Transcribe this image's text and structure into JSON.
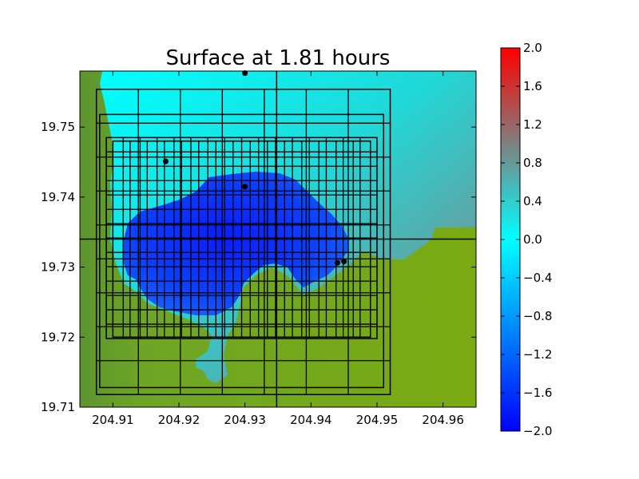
{
  "chart_data": {
    "type": "heatmap",
    "title": "Surface at 1.81 hours",
    "xlabel": "",
    "ylabel": "",
    "xlim": [
      204.905,
      204.965
    ],
    "ylim": [
      19.71,
      19.758
    ],
    "x_ticks": [
      "204.91",
      "204.92",
      "204.93",
      "204.94",
      "204.95",
      "204.96"
    ],
    "y_ticks": [
      "19.71",
      "19.72",
      "19.73",
      "19.74",
      "19.75"
    ],
    "colorbar": {
      "range": [
        -2.0,
        2.0
      ],
      "ticks": [
        "2.0",
        "1.6",
        "1.2",
        "0.8",
        "0.4",
        "0.0",
        "−0.4",
        "−0.8",
        "−1.2",
        "−1.6",
        "−2.0"
      ],
      "colors": {
        "min": "#0000ff",
        "zero": "#00ffff",
        "mid_high": "#808080",
        "max": "#ff0000"
      }
    },
    "land_color": "#76a81a",
    "grid": false,
    "gauges": [
      {
        "x": 204.93,
        "y": 19.7577
      },
      {
        "x": 204.918,
        "y": 19.7451
      },
      {
        "x": 204.93,
        "y": 19.7415
      },
      {
        "x": 204.944,
        "y": 19.7306
      },
      {
        "x": 204.945,
        "y": 19.7308
      }
    ],
    "grid_levels": [
      {
        "x": [
          204.9075,
          204.952
        ],
        "y": [
          19.7118,
          19.7554
        ]
      },
      {
        "x": [
          204.908,
          204.951
        ],
        "y": [
          19.7128,
          19.7518
        ]
      },
      {
        "x": [
          204.909,
          204.95
        ],
        "y": [
          19.7198,
          19.7485
        ]
      },
      {
        "x": [
          204.91,
          204.949
        ],
        "y": [
          19.72,
          19.748
        ]
      }
    ],
    "crosshair": {
      "x": 204.9348,
      "y": 19.734
    }
  }
}
